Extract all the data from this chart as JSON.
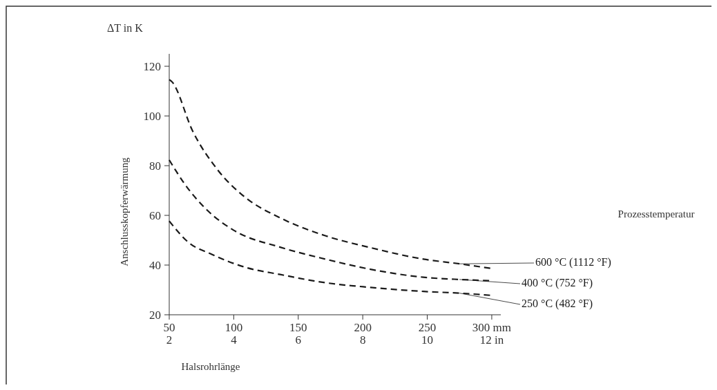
{
  "chart_data": {
    "type": "line",
    "ylabel": "Anschlusskopferwärmung",
    "xlabel": "Halsrohrlänge",
    "legend_title": "Prozesstemperatur",
    "annotations": [
      "ΔT in K"
    ],
    "xlim": [
      50,
      307
    ],
    "xticks": [
      50,
      100,
      150,
      200,
      250,
      {
        "value": 300,
        "label": "300 mm"
      }
    ],
    "x2lim": [
      2,
      12.28
    ],
    "x2ticks": [
      2,
      4,
      6,
      8,
      10,
      {
        "value": 12,
        "label": "12 in"
      }
    ],
    "ylim": [
      20,
      125
    ],
    "yticks": [
      20,
      40,
      60,
      80,
      100,
      120
    ],
    "grid": false,
    "legend": "right",
    "line_style": "dashed",
    "marker": "none",
    "series": [
      {
        "name": "600 °C (1112 °F)",
        "color": "#1a1a1a",
        "x": [
          50,
          52,
          68,
          88,
          109,
          136,
          171,
          206,
          247,
          275,
          300
        ],
        "values": [
          114.6,
          113.8,
          94.1,
          78,
          67.2,
          59,
          51.8,
          47,
          42.4,
          40.5,
          38.6
        ]
      },
      {
        "name": "400 °C (752 °F)",
        "color": "#1a1a1a",
        "x": [
          50,
          62,
          80,
          100,
          136,
          171,
          206,
          247,
          275,
          300
        ],
        "values": [
          82.3,
          72.6,
          61.8,
          54,
          47.2,
          42.4,
          38.3,
          35.1,
          34.2,
          33.7
        ]
      },
      {
        "name": "250 °C (482 °F)",
        "color": "#1a1a1a",
        "x": [
          50,
          65,
          83,
          109,
          136,
          171,
          206,
          247,
          275,
          300
        ],
        "values": [
          57.7,
          49.1,
          44.3,
          39.1,
          36.2,
          32.9,
          31,
          29.4,
          28.7,
          27.8
        ]
      }
    ]
  }
}
